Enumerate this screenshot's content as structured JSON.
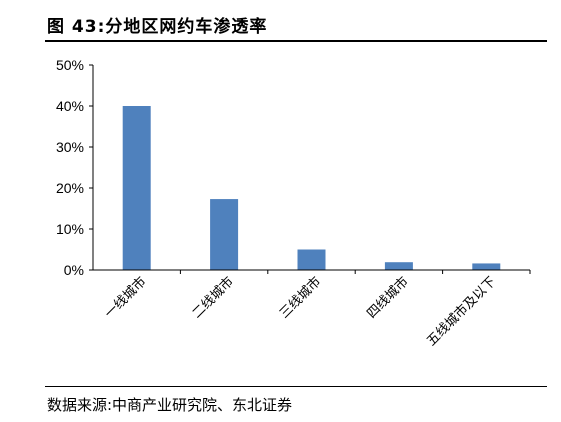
{
  "title": "图 43:分地区网约车渗透率",
  "source": "数据来源:中商产业研究院、东北证券",
  "chart_data": {
    "type": "bar",
    "title": "图 43:分地区网约车渗透率",
    "categories": [
      "一线城市",
      "二线城市",
      "三线城市",
      "四线城市",
      "五线城市及以下"
    ],
    "values": [
      40,
      17.3,
      5,
      1.9,
      1.6
    ],
    "yticks": [
      "0%",
      "10%",
      "20%",
      "30%",
      "40%",
      "50%"
    ],
    "ylim": [
      0,
      50
    ],
    "grid": false,
    "legend": "none",
    "bar_color": "#4f81bd"
  }
}
